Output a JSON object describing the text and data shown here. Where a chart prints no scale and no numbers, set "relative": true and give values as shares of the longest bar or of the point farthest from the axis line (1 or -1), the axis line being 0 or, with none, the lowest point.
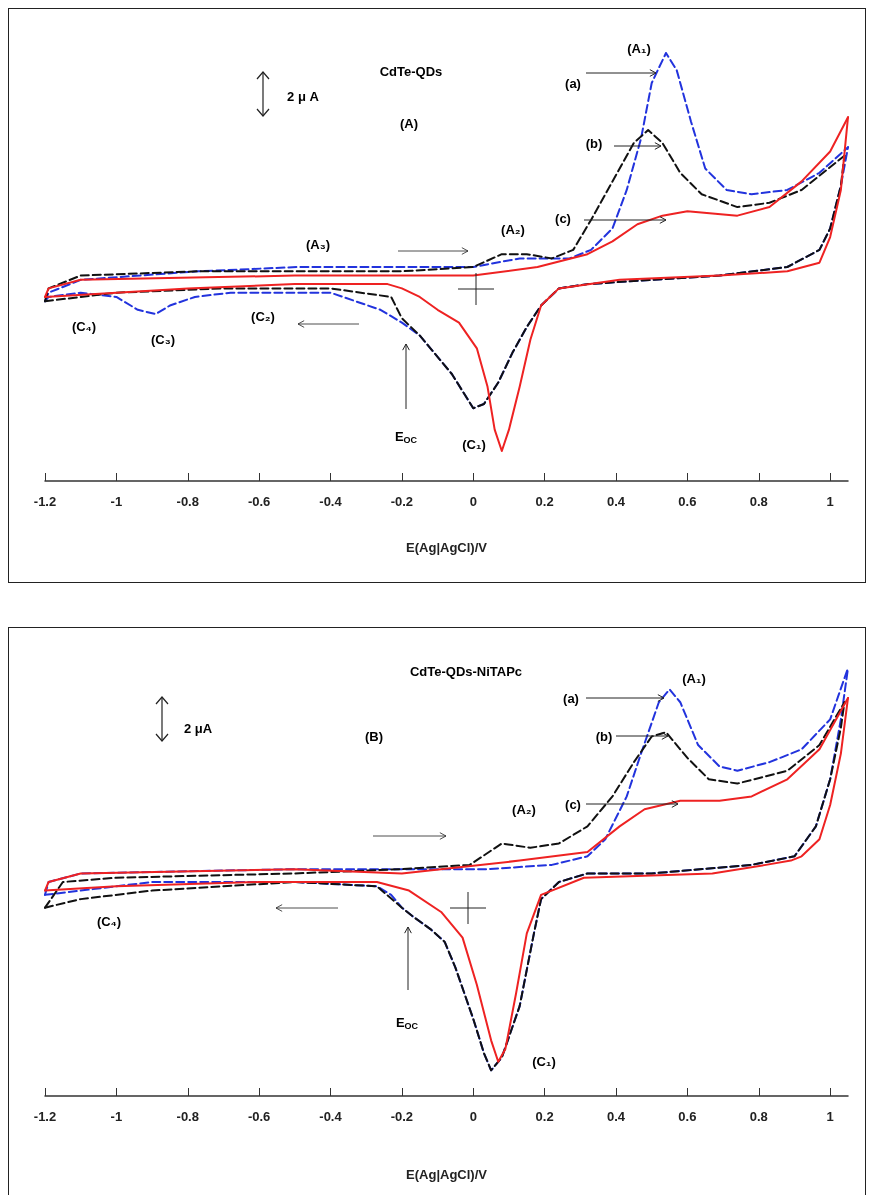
{
  "chart_data": [
    {
      "type": "line",
      "title": "CdTe-QDs",
      "xlabel": "E(Ag|AgCl)/V",
      "relative": true,
      "grid": false,
      "xlim": [
        -1.2,
        1.05
      ],
      "xticks": [
        -1.2,
        -1,
        -0.8,
        -0.6,
        -0.4,
        -0.2,
        0,
        0.2,
        0.4,
        0.6,
        0.8,
        1
      ],
      "annotations": [
        "2 μ A",
        "(A)",
        "(A₁)",
        "(a)",
        "(b)",
        "(c)",
        "(A₂)",
        "(A₃)",
        "(C₂)",
        "(C₃)",
        "(C₄)",
        "(C₁)",
        "E$_{OC}$"
      ],
      "series": [
        {
          "color": "#2233dd",
          "line_style": "dashed",
          "x": [
            -1.2,
            -1.19,
            -1.1,
            -0.77,
            -0.49,
            -0.2,
            0,
            0.13,
            0.27,
            0.33,
            0.39,
            0.43,
            0.47,
            0.5,
            0.54,
            0.57,
            0.61,
            0.65,
            0.71,
            0.78,
            0.88,
            0.97,
            1.05
          ],
          "values": [
            0.42,
            0.44,
            0.47,
            0.49,
            0.5,
            0.5,
            0.5,
            0.52,
            0.52,
            0.54,
            0.59,
            0.68,
            0.8,
            0.93,
            1.0,
            0.96,
            0.84,
            0.73,
            0.68,
            0.67,
            0.68,
            0.72,
            0.78
          ]
        },
        {
          "color": "#2233dd",
          "line_style": "dashed",
          "x": [
            -1.2,
            -1.19,
            -1.1,
            -1.0,
            -0.94,
            -0.89,
            -0.85,
            -0.78,
            -0.68,
            -0.4,
            -0.26,
            -0.2,
            -0.15,
            -0.12,
            -0.06,
            0.0,
            0.03,
            0.07,
            0.11,
            0.15,
            0.19,
            0.24,
            0.32,
            0.5,
            0.69,
            0.88,
            0.97,
            1.0,
            1.03,
            1.05
          ],
          "values": [
            0.42,
            0.43,
            0.44,
            0.43,
            0.4,
            0.39,
            0.41,
            0.43,
            0.44,
            0.44,
            0.4,
            0.37,
            0.34,
            0.31,
            0.25,
            0.17,
            0.18,
            0.23,
            0.3,
            0.36,
            0.41,
            0.45,
            0.46,
            0.47,
            0.48,
            0.5,
            0.54,
            0.59,
            0.69,
            0.78
          ]
        },
        {
          "color": "#111111",
          "line_style": "dashed",
          "x": [
            -1.2,
            -1.19,
            -1.1,
            -0.77,
            -0.49,
            -0.2,
            0,
            0.08,
            0.15,
            0.22,
            0.28,
            0.33,
            0.39,
            0.45,
            0.49,
            0.53,
            0.58,
            0.64,
            0.74,
            0.83,
            0.92,
            1.04
          ],
          "values": [
            0.42,
            0.45,
            0.48,
            0.49,
            0.49,
            0.49,
            0.5,
            0.53,
            0.53,
            0.52,
            0.54,
            0.61,
            0.7,
            0.79,
            0.82,
            0.79,
            0.72,
            0.67,
            0.64,
            0.65,
            0.68,
            0.76
          ]
        },
        {
          "color": "#111111",
          "line_style": "dashed",
          "x": [
            -1.2,
            -1.0,
            -0.7,
            -0.4,
            -0.23,
            -0.2,
            -0.15,
            -0.12,
            -0.06,
            0.0,
            0.03,
            0.07,
            0.11,
            0.15,
            0.19,
            0.24,
            0.32,
            0.5,
            0.69,
            0.88,
            0.97,
            1.0,
            1.03,
            1.04
          ],
          "values": [
            0.42,
            0.44,
            0.45,
            0.45,
            0.43,
            0.38,
            0.34,
            0.31,
            0.25,
            0.17,
            0.18,
            0.23,
            0.3,
            0.36,
            0.41,
            0.45,
            0.46,
            0.47,
            0.48,
            0.5,
            0.54,
            0.59,
            0.69,
            0.76
          ]
        },
        {
          "color": "#ee2222",
          "line_style": "solid",
          "x": [
            -1.2,
            -1.19,
            -1.1,
            -0.5,
            -0.2,
            0,
            0.18,
            0.32,
            0.39,
            0.46,
            0.53,
            0.6,
            0.74,
            0.83,
            0.92,
            1.0,
            1.05
          ],
          "values": [
            0.43,
            0.45,
            0.47,
            0.48,
            0.48,
            0.48,
            0.5,
            0.53,
            0.56,
            0.6,
            0.62,
            0.63,
            0.62,
            0.64,
            0.7,
            0.77,
            0.85
          ]
        },
        {
          "color": "#ee2222",
          "line_style": "solid",
          "x": [
            -1.2,
            -1.0,
            -0.8,
            -0.5,
            -0.24,
            -0.2,
            -0.15,
            -0.1,
            -0.04,
            0.01,
            0.04,
            0.06,
            0.08,
            0.1,
            0.13,
            0.16,
            0.19,
            0.24,
            0.41,
            0.69,
            0.88,
            0.97,
            1.0,
            1.03,
            1.05
          ],
          "values": [
            0.43,
            0.44,
            0.45,
            0.46,
            0.46,
            0.45,
            0.43,
            0.4,
            0.37,
            0.31,
            0.22,
            0.12,
            0.07,
            0.12,
            0.22,
            0.33,
            0.41,
            0.45,
            0.47,
            0.48,
            0.49,
            0.51,
            0.57,
            0.68,
            0.85
          ]
        }
      ]
    },
    {
      "type": "line",
      "title": "CdTe-QDs-NiTAPc",
      "xlabel": "E(Ag|AgCl)/V",
      "relative": true,
      "grid": false,
      "xlim": [
        -1.2,
        1.05
      ],
      "xticks": [
        -1.2,
        -1,
        -0.8,
        -0.6,
        -0.4,
        -0.2,
        0,
        0.2,
        0.4,
        0.6,
        0.8,
        1
      ],
      "annotations": [
        "2 μA",
        "(B)",
        "(A₁)",
        "(a)",
        "(b)",
        "(c)",
        "(A₂)",
        "(C₄)",
        "(C₁)",
        "E$_{OC}$"
      ],
      "series": [
        {
          "color": "#2233dd",
          "line_style": "dashed",
          "x": [
            -1.2,
            -1.19,
            -1.1,
            -0.5,
            -0.2,
            0.04,
            0.22,
            0.32,
            0.37,
            0.43,
            0.47,
            0.52,
            0.55,
            0.58,
            0.63,
            0.69,
            0.74,
            0.83,
            0.92,
            1.0,
            1.05
          ],
          "values": [
            0.47,
            0.5,
            0.52,
            0.53,
            0.53,
            0.53,
            0.54,
            0.56,
            0.6,
            0.7,
            0.8,
            0.92,
            0.95,
            0.92,
            0.82,
            0.77,
            0.76,
            0.78,
            0.81,
            0.88,
            1.0
          ]
        },
        {
          "color": "#2233dd",
          "line_style": "dashed",
          "x": [
            -1.2,
            -0.9,
            -0.5,
            -0.27,
            -0.23,
            -0.2,
            -0.17,
            -0.12,
            -0.08,
            -0.05,
            0.0,
            0.03,
            0.05,
            0.08,
            0.13,
            0.17,
            0.19,
            0.24,
            0.32,
            0.5,
            0.78,
            0.9,
            0.96,
            1.0,
            1.03,
            1.05
          ],
          "values": [
            0.47,
            0.5,
            0.5,
            0.49,
            0.47,
            0.44,
            0.42,
            0.39,
            0.36,
            0.3,
            0.18,
            0.1,
            0.06,
            0.09,
            0.21,
            0.38,
            0.46,
            0.5,
            0.52,
            0.52,
            0.54,
            0.56,
            0.63,
            0.74,
            0.88,
            1.0
          ]
        },
        {
          "color": "#111111",
          "line_style": "dashed",
          "x": [
            -1.2,
            -1.15,
            -1.0,
            -0.5,
            -0.2,
            -0.01,
            0.08,
            0.16,
            0.24,
            0.32,
            0.39,
            0.45,
            0.5,
            0.54,
            0.6,
            0.66,
            0.74,
            0.88,
            0.97,
            1.04
          ],
          "values": [
            0.44,
            0.5,
            0.51,
            0.52,
            0.53,
            0.54,
            0.59,
            0.58,
            0.59,
            0.63,
            0.7,
            0.78,
            0.84,
            0.85,
            0.79,
            0.74,
            0.73,
            0.76,
            0.82,
            0.92
          ]
        },
        {
          "color": "#111111",
          "line_style": "dashed",
          "x": [
            -1.2,
            -1.1,
            -0.9,
            -0.5,
            -0.27,
            -0.2,
            -0.17,
            -0.12,
            -0.08,
            -0.05,
            0.0,
            0.03,
            0.05,
            0.08,
            0.13,
            0.17,
            0.19,
            0.24,
            0.32,
            0.5,
            0.78,
            0.9,
            0.96,
            1.0,
            1.03,
            1.04
          ],
          "values": [
            0.44,
            0.46,
            0.48,
            0.5,
            0.49,
            0.44,
            0.42,
            0.39,
            0.36,
            0.3,
            0.18,
            0.1,
            0.06,
            0.09,
            0.21,
            0.38,
            0.46,
            0.5,
            0.52,
            0.52,
            0.54,
            0.56,
            0.63,
            0.74,
            0.86,
            0.92
          ]
        },
        {
          "color": "#ee2222",
          "line_style": "solid",
          "x": [
            -1.2,
            -1.19,
            -1.1,
            -0.5,
            -0.2,
            0.13,
            0.32,
            0.41,
            0.48,
            0.58,
            0.69,
            0.78,
            0.88,
            0.97,
            1.05
          ],
          "values": [
            0.48,
            0.5,
            0.52,
            0.53,
            0.52,
            0.55,
            0.57,
            0.63,
            0.67,
            0.69,
            0.69,
            0.7,
            0.74,
            0.81,
            0.93
          ]
        },
        {
          "color": "#ee2222",
          "line_style": "solid",
          "x": [
            -1.2,
            -1.0,
            -0.6,
            -0.27,
            -0.18,
            -0.09,
            -0.03,
            0.01,
            0.05,
            0.07,
            0.09,
            0.12,
            0.15,
            0.19,
            0.31,
            0.67,
            0.82,
            0.89,
            0.92,
            0.97,
            1.0,
            1.03,
            1.05
          ],
          "values": [
            0.48,
            0.49,
            0.5,
            0.5,
            0.48,
            0.43,
            0.37,
            0.26,
            0.13,
            0.08,
            0.11,
            0.24,
            0.38,
            0.47,
            0.51,
            0.52,
            0.54,
            0.55,
            0.56,
            0.6,
            0.68,
            0.8,
            0.93
          ]
        }
      ]
    }
  ]
}
